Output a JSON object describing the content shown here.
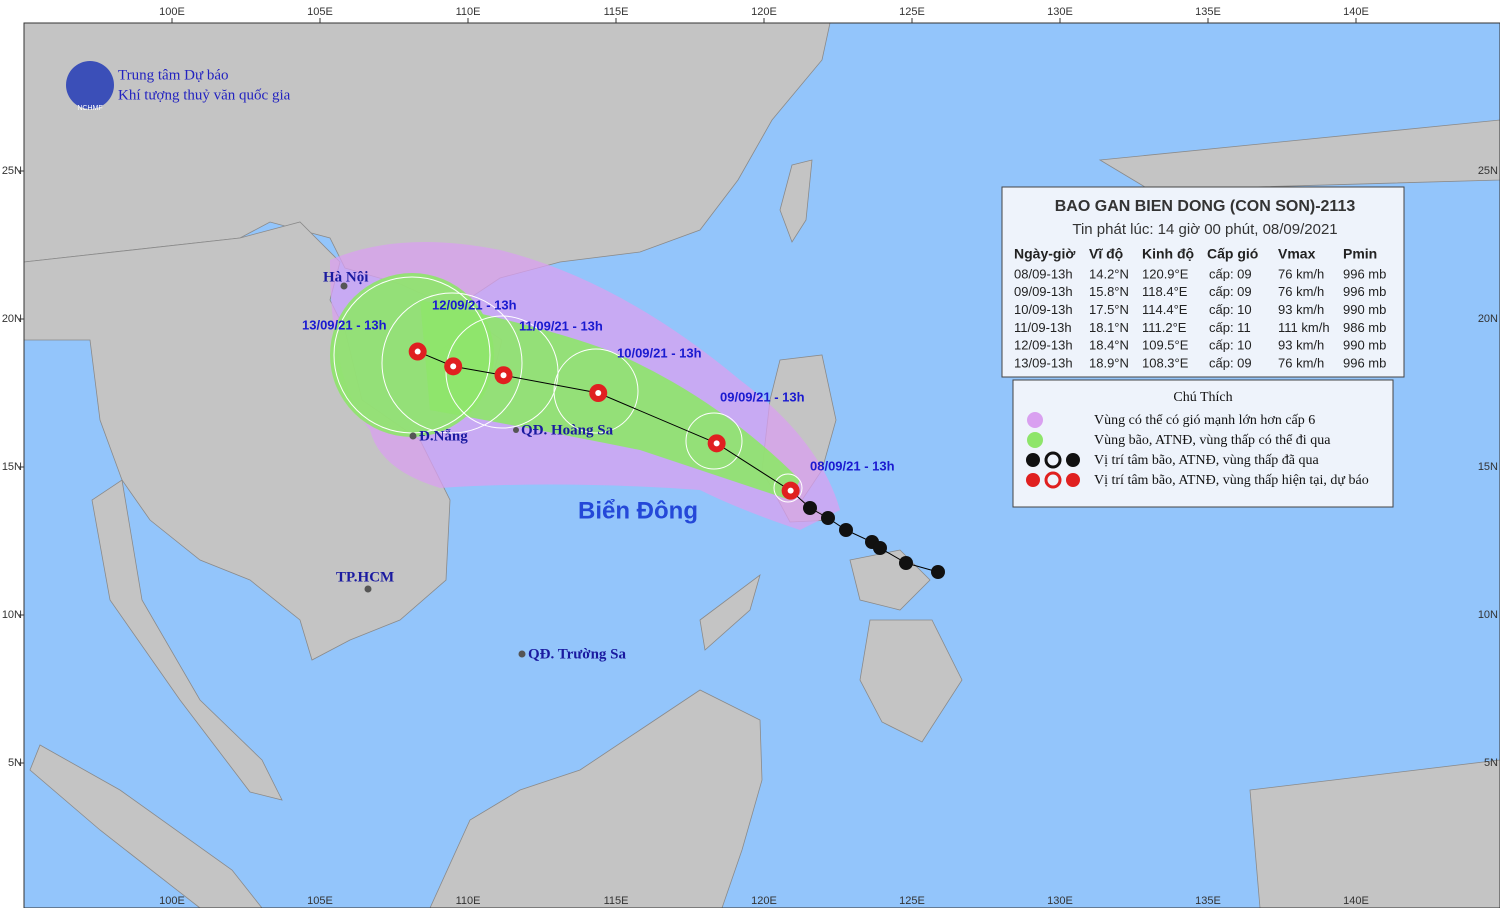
{
  "header": {
    "org_line1": "Trung tâm Dự báo",
    "org_line2": "Khí tượng thuỷ văn quốc gia",
    "logo_text": "NCHMF"
  },
  "map": {
    "lon_ticks": [
      {
        "value": 100,
        "label": "100E"
      },
      {
        "value": 105,
        "label": "105E"
      },
      {
        "value": 110,
        "label": "110E"
      },
      {
        "value": 115,
        "label": "115E"
      },
      {
        "value": 120,
        "label": "120E"
      },
      {
        "value": 125,
        "label": "125E"
      },
      {
        "value": 130,
        "label": "130E"
      },
      {
        "value": 135,
        "label": "135E"
      },
      {
        "value": 140,
        "label": "140E"
      }
    ],
    "lat_ticks": [
      {
        "value": 25,
        "label": "25N"
      },
      {
        "value": 20,
        "label": "20N"
      },
      {
        "value": 15,
        "label": "15N"
      },
      {
        "value": 10,
        "label": "10N"
      },
      {
        "value": 5,
        "label": "5N"
      }
    ],
    "places": [
      "Hà Nội",
      "Đ.Nẵng",
      "QĐ. Hoàng Sa",
      "TP.HCM",
      "QĐ. Trường Sa"
    ],
    "sea_label": "Biển Đông",
    "track_labels": [
      "08/09/21 - 13h",
      "09/09/21 - 13h",
      "10/09/21 - 13h",
      "11/09/21 - 13h",
      "12/09/21 - 13h",
      "13/09/21 - 13h"
    ]
  },
  "bulletin": {
    "title": "BAO GAN BIEN DONG (CON SON)-2113",
    "issued": "Tin phát lúc: 14 giờ 00 phút, 08/09/2021",
    "columns": [
      "Ngày-giờ",
      "Vĩ độ",
      "Kinh độ",
      "Cấp gió",
      "Vmax",
      "Pmin"
    ],
    "rows": [
      [
        "08/09-13h",
        "14.2°N",
        "120.9°E",
        "cấp: 09",
        "76 km/h",
        "996 mb"
      ],
      [
        "09/09-13h",
        "15.8°N",
        "118.4°E",
        "cấp: 09",
        "76 km/h",
        "996 mb"
      ],
      [
        "10/09-13h",
        "17.5°N",
        "114.4°E",
        "cấp: 10",
        "93 km/h",
        "990 mb"
      ],
      [
        "11/09-13h",
        "18.1°N",
        "111.2°E",
        "cấp: 11",
        "111 km/h",
        "986 mb"
      ],
      [
        "12/09-13h",
        "18.4°N",
        "109.5°E",
        "cấp: 10",
        "93 km/h",
        "990 mb"
      ],
      [
        "13/09-13h",
        "18.9°N",
        "108.3°E",
        "cấp: 09",
        "76 km/h",
        "996 mb"
      ]
    ]
  },
  "legend": {
    "title": "Chú Thích",
    "items": [
      "Vùng có thể có gió mạnh lớn hơn cấp 6",
      "Vùng bão, ATNĐ, vùng thấp có thể đi qua",
      "Vị trí tâm bão, ATNĐ, vùng thấp đã qua",
      "Vị trí tâm bão, ATNĐ, vùng thấp hiện tại, dự báo"
    ]
  }
}
